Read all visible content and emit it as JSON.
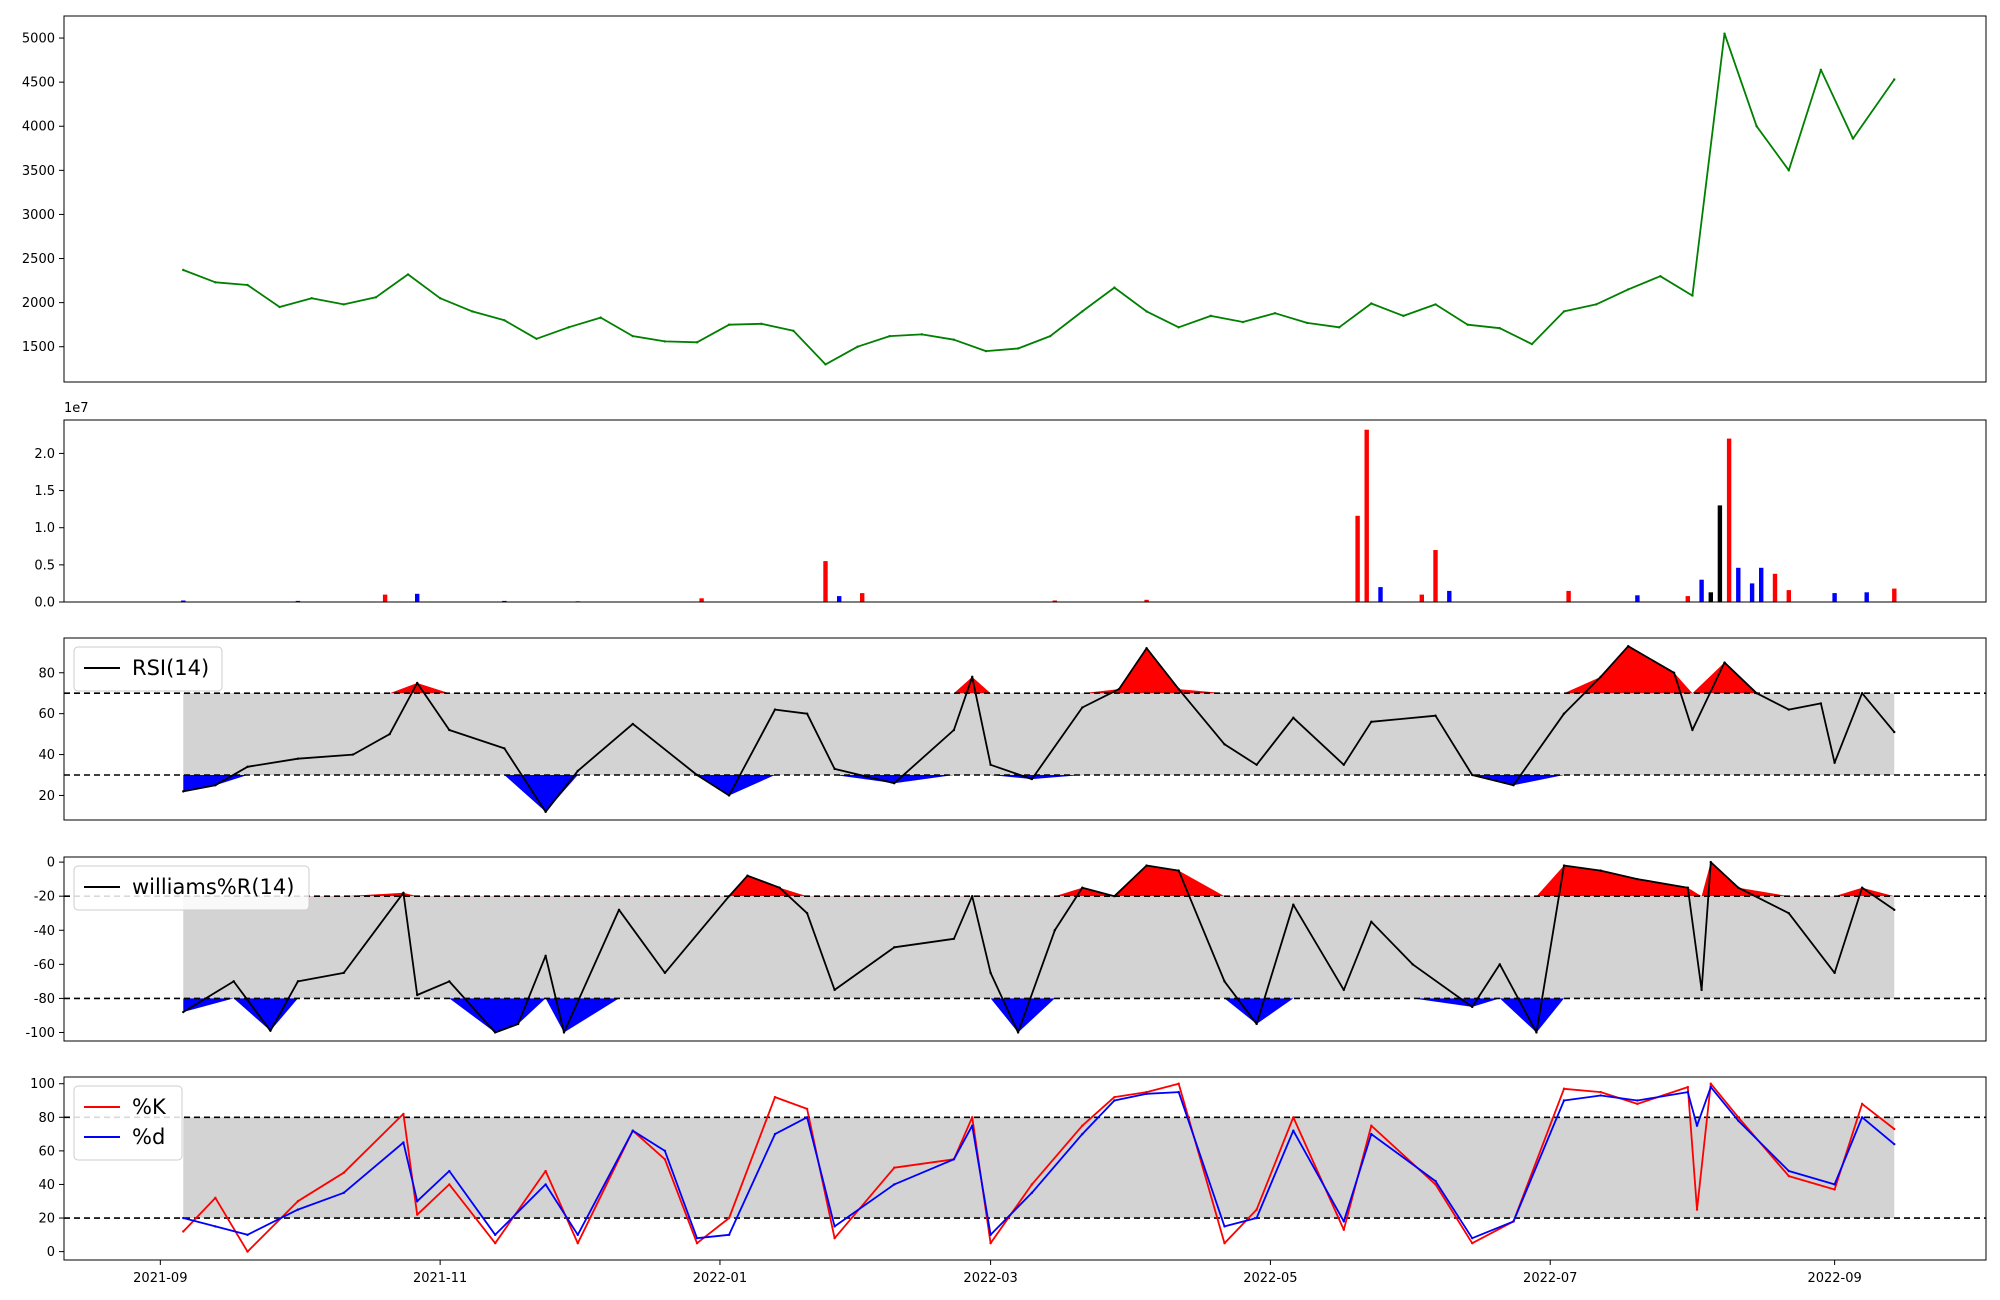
{
  "colors": {
    "price": "#008000",
    "volume_up": "#ff0000",
    "volume_down": "#0000ff",
    "volume_neutral": "#000000",
    "overbought_fill": "#ff0000",
    "oversold_fill": "#0000ff",
    "band_fill": "#d3d3d3",
    "indicator_line": "#000000",
    "k_line": "#ff0000",
    "d_line": "#0000ff"
  },
  "chart_data": [
    {
      "type": "line",
      "panel": "price",
      "title": "",
      "ylim": [
        1100,
        5250
      ],
      "yticks": [
        1500,
        2000,
        2500,
        3000,
        3500,
        4000,
        4500,
        5000
      ],
      "series": [
        {
          "x": [
            "2021-09-06",
            "2021-09-13",
            "2021-09-20",
            "2021-09-27",
            "2021-10-04",
            "2021-10-11",
            "2021-10-18",
            "2021-10-25",
            "2021-11-01",
            "2021-11-08",
            "2021-11-15",
            "2021-11-22",
            "2021-11-29",
            "2021-12-06",
            "2021-12-13",
            "2021-12-20",
            "2021-12-27",
            "2022-01-03",
            "2022-01-10",
            "2022-01-17",
            "2022-01-24",
            "2022-01-31",
            "2022-02-07",
            "2022-02-14",
            "2022-02-21",
            "2022-02-28",
            "2022-03-07",
            "2022-03-14",
            "2022-03-21",
            "2022-03-28",
            "2022-04-04",
            "2022-04-11",
            "2022-04-18",
            "2022-04-25",
            "2022-05-02",
            "2022-05-09",
            "2022-05-16",
            "2022-05-23",
            "2022-05-30",
            "2022-06-06",
            "2022-06-13",
            "2022-06-20",
            "2022-06-27",
            "2022-07-04",
            "2022-07-11",
            "2022-07-18",
            "2022-07-25",
            "2022-08-01",
            "2022-08-08",
            "2022-08-15",
            "2022-08-22",
            "2022-08-29",
            "2022-09-05",
            "2022-09-14"
          ],
          "values": [
            2370,
            2230,
            2200,
            1950,
            2050,
            1980,
            2060,
            2320,
            2050,
            1900,
            1800,
            1590,
            1720,
            1830,
            1620,
            1560,
            1550,
            1750,
            1760,
            1680,
            1300,
            1500,
            1620,
            1640,
            1580,
            1450,
            1480,
            1620,
            1900,
            2170,
            1900,
            1720,
            1850,
            1780,
            1880,
            1770,
            1720,
            1990,
            1850,
            1980,
            1750,
            1710,
            1530,
            1900,
            1980,
            2150,
            2300,
            2080,
            5050,
            4000,
            3500,
            4640,
            3860,
            4530
          ]
        }
      ]
    },
    {
      "type": "bar",
      "panel": "volume",
      "offset_label": "1e7",
      "ylim": [
        0,
        24500000
      ],
      "yticks": [
        0.0,
        0.5,
        1.0,
        1.5,
        2.0
      ],
      "series": [
        {
          "x": [
            "2021-09-06",
            "2021-10-01",
            "2021-10-20",
            "2021-10-27",
            "2021-11-15",
            "2021-12-01",
            "2021-12-28",
            "2022-01-24",
            "2022-01-27",
            "2022-02-01",
            "2022-03-15",
            "2022-04-04",
            "2022-05-20",
            "2022-05-22",
            "2022-05-25",
            "2022-06-03",
            "2022-06-06",
            "2022-06-09",
            "2022-07-05",
            "2022-07-20",
            "2022-07-31",
            "2022-08-03",
            "2022-08-05",
            "2022-08-07",
            "2022-08-09",
            "2022-08-11",
            "2022-08-14",
            "2022-08-16",
            "2022-08-19",
            "2022-08-22",
            "2022-09-01",
            "2022-09-08",
            "2022-09-14"
          ],
          "values": [
            200000,
            150000,
            1000000,
            1100000,
            150000,
            100000,
            500000,
            5500000,
            800000,
            1200000,
            200000,
            300000,
            11600000,
            23200000,
            2000000,
            1000000,
            7000000,
            1500000,
            1500000,
            900000,
            800000,
            3000000,
            1300000,
            13000000,
            22000000,
            4600000,
            2500000,
            4600000,
            3800000,
            1600000,
            1200000,
            1300000,
            1800000
          ],
          "direction": [
            "down",
            "down",
            "up",
            "down",
            "down",
            "down",
            "up",
            "up",
            "down",
            "up",
            "up",
            "up",
            "up",
            "up",
            "down",
            "up",
            "up",
            "down",
            "up",
            "down",
            "up",
            "down",
            "neutral",
            "neutral",
            "up",
            "down",
            "down",
            "down",
            "up",
            "up",
            "down",
            "down",
            "up"
          ]
        }
      ]
    },
    {
      "type": "line",
      "panel": "rsi",
      "ylim": [
        8,
        97
      ],
      "yticks": [
        20,
        40,
        60,
        80
      ],
      "thresholds": [
        30,
        70
      ],
      "series": [
        {
          "name": "RSI(14)",
          "x": [
            "2021-09-06",
            "2021-09-13",
            "2021-09-20",
            "2021-10-01",
            "2021-10-13",
            "2021-10-21",
            "2021-10-27",
            "2021-11-03",
            "2021-11-15",
            "2021-11-24",
            "2021-12-01",
            "2021-12-13",
            "2021-12-27",
            "2022-01-03",
            "2022-01-13",
            "2022-01-20",
            "2022-01-26",
            "2022-02-08",
            "2022-02-21",
            "2022-02-25",
            "2022-03-01",
            "2022-03-10",
            "2022-03-21",
            "2022-03-29",
            "2022-04-04",
            "2022-04-11",
            "2022-04-21",
            "2022-04-28",
            "2022-05-06",
            "2022-05-17",
            "2022-05-23",
            "2022-06-06",
            "2022-06-14",
            "2022-06-23",
            "2022-07-04",
            "2022-07-12",
            "2022-07-18",
            "2022-07-28",
            "2022-08-01",
            "2022-08-08",
            "2022-08-15",
            "2022-08-22",
            "2022-08-29",
            "2022-09-01",
            "2022-09-07",
            "2022-09-14"
          ],
          "values": [
            22,
            25,
            34,
            38,
            40,
            50,
            75,
            52,
            43,
            12,
            32,
            55,
            30,
            20,
            62,
            60,
            33,
            26,
            52,
            78,
            35,
            28,
            63,
            72,
            92,
            72,
            45,
            35,
            58,
            35,
            56,
            59,
            30,
            25,
            60,
            78,
            93,
            80,
            52,
            85,
            70,
            62,
            65,
            36,
            70,
            51
          ]
        }
      ]
    },
    {
      "type": "line",
      "panel": "williams",
      "ylim": [
        -105,
        3
      ],
      "yticks": [
        -100,
        -80,
        -60,
        -40,
        -20,
        0
      ],
      "thresholds": [
        -80,
        -20
      ],
      "series": [
        {
          "name": "williams%R(14)",
          "x": [
            "2021-09-06",
            "2021-09-17",
            "2021-09-25",
            "2021-10-01",
            "2021-10-11",
            "2021-10-24",
            "2021-10-27",
            "2021-11-03",
            "2021-11-13",
            "2021-11-18",
            "2021-11-24",
            "2021-11-28",
            "2021-12-10",
            "2021-12-20",
            "2022-01-03",
            "2022-01-07",
            "2022-01-14",
            "2022-01-20",
            "2022-01-26",
            "2022-02-08",
            "2022-02-21",
            "2022-02-25",
            "2022-03-01",
            "2022-03-07",
            "2022-03-15",
            "2022-03-21",
            "2022-03-28",
            "2022-04-04",
            "2022-04-11",
            "2022-04-21",
            "2022-04-28",
            "2022-05-06",
            "2022-05-17",
            "2022-05-23",
            "2022-06-01",
            "2022-06-14",
            "2022-06-20",
            "2022-06-28",
            "2022-07-04",
            "2022-07-12",
            "2022-07-20",
            "2022-07-31",
            "2022-08-03",
            "2022-08-05",
            "2022-08-11",
            "2022-08-22",
            "2022-09-01",
            "2022-09-07",
            "2022-09-14"
          ],
          "values": [
            -88,
            -70,
            -99,
            -70,
            -65,
            -18,
            -78,
            -70,
            -100,
            -95,
            -55,
            -100,
            -28,
            -65,
            -20,
            -8,
            -15,
            -30,
            -75,
            -50,
            -45,
            -20,
            -65,
            -100,
            -40,
            -15,
            -20,
            -2,
            -5,
            -70,
            -95,
            -25,
            -75,
            -35,
            -60,
            -85,
            -60,
            -100,
            -2,
            -5,
            -10,
            -15,
            -75,
            0,
            -15,
            -30,
            -65,
            -15,
            -28
          ]
        }
      ]
    },
    {
      "type": "line",
      "panel": "stochastic",
      "ylim": [
        -5,
        104
      ],
      "yticks": [
        0,
        20,
        40,
        60,
        80,
        100
      ],
      "thresholds": [
        20,
        80
      ],
      "series": [
        {
          "name": "%K",
          "x": [
            "2021-09-06",
            "2021-09-13",
            "2021-09-20",
            "2021-10-01",
            "2021-10-11",
            "2021-10-24",
            "2021-10-27",
            "2021-11-03",
            "2021-11-13",
            "2021-11-24",
            "2021-12-01",
            "2021-12-13",
            "2021-12-20",
            "2021-12-27",
            "2022-01-03",
            "2022-01-13",
            "2022-01-20",
            "2022-01-26",
            "2022-02-08",
            "2022-02-21",
            "2022-02-25",
            "2022-03-01",
            "2022-03-10",
            "2022-03-21",
            "2022-03-28",
            "2022-04-04",
            "2022-04-11",
            "2022-04-21",
            "2022-04-28",
            "2022-05-06",
            "2022-05-17",
            "2022-05-23",
            "2022-06-06",
            "2022-06-14",
            "2022-06-23",
            "2022-07-04",
            "2022-07-12",
            "2022-07-20",
            "2022-07-31",
            "2022-08-02",
            "2022-08-05",
            "2022-08-11",
            "2022-08-22",
            "2022-09-01",
            "2022-09-07",
            "2022-09-14"
          ],
          "values": [
            12,
            32,
            0,
            30,
            47,
            82,
            22,
            40,
            5,
            48,
            5,
            72,
            55,
            5,
            20,
            92,
            85,
            8,
            50,
            55,
            80,
            5,
            40,
            75,
            92,
            95,
            100,
            5,
            25,
            80,
            13,
            75,
            40,
            5,
            18,
            97,
            95,
            88,
            98,
            25,
            100,
            80,
            45,
            37,
            88,
            73
          ]
        },
        {
          "name": "%d",
          "x": [
            "2021-09-06",
            "2021-09-13",
            "2021-09-20",
            "2021-10-01",
            "2021-10-11",
            "2021-10-24",
            "2021-10-27",
            "2021-11-03",
            "2021-11-13",
            "2021-11-24",
            "2021-12-01",
            "2021-12-13",
            "2021-12-20",
            "2021-12-27",
            "2022-01-03",
            "2022-01-13",
            "2022-01-20",
            "2022-01-26",
            "2022-02-08",
            "2022-02-21",
            "2022-02-25",
            "2022-03-01",
            "2022-03-10",
            "2022-03-21",
            "2022-03-28",
            "2022-04-04",
            "2022-04-11",
            "2022-04-21",
            "2022-04-28",
            "2022-05-06",
            "2022-05-17",
            "2022-05-23",
            "2022-06-06",
            "2022-06-14",
            "2022-06-23",
            "2022-07-04",
            "2022-07-12",
            "2022-07-20",
            "2022-07-31",
            "2022-08-02",
            "2022-08-05",
            "2022-08-11",
            "2022-08-22",
            "2022-09-01",
            "2022-09-07",
            "2022-09-14"
          ],
          "values": [
            20,
            15,
            10,
            25,
            35,
            65,
            30,
            48,
            10,
            40,
            10,
            72,
            60,
            8,
            10,
            70,
            80,
            15,
            40,
            55,
            75,
            10,
            35,
            70,
            90,
            94,
            95,
            15,
            20,
            72,
            18,
            70,
            42,
            8,
            18,
            90,
            93,
            90,
            95,
            75,
            98,
            78,
            48,
            40,
            80,
            64
          ]
        }
      ]
    }
  ],
  "xaxis": {
    "ticks": [
      {
        "date": "2021-09-01",
        "label": "2021-09"
      },
      {
        "date": "2021-11-01",
        "label": "2021-11"
      },
      {
        "date": "2022-01-01",
        "label": "2022-01"
      },
      {
        "date": "2022-03-01",
        "label": "2022-03"
      },
      {
        "date": "2022-05-01",
        "label": "2022-05"
      },
      {
        "date": "2022-07-01",
        "label": "2022-07"
      },
      {
        "date": "2022-09-01",
        "label": "2022-09"
      }
    ],
    "xlim": [
      "2021-08-11",
      "2022-10-04"
    ]
  }
}
